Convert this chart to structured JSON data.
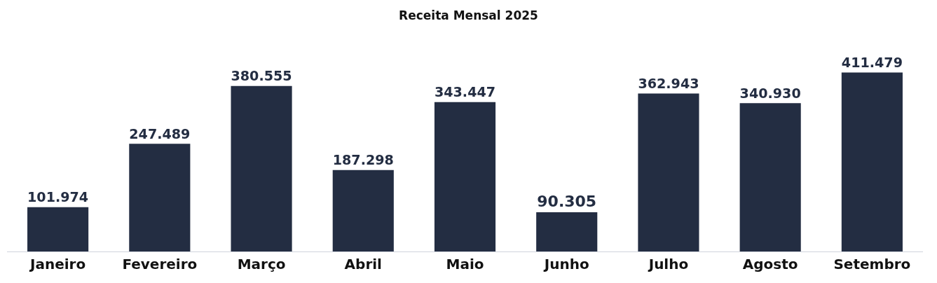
{
  "chart_data": {
    "type": "bar",
    "title": "Receita Mensal 2025",
    "categories": [
      "Janeiro",
      "Fevereiro",
      "Março",
      "Abril",
      "Maio",
      "Junho",
      "Julho",
      "Agosto",
      "Setembro"
    ],
    "values": [
      101974,
      247489,
      380555,
      187298,
      343447,
      90305,
      362943,
      340930,
      411479
    ],
    "value_labels": [
      "101.974",
      "247.489",
      "380.555",
      "187.298",
      "343.447",
      "90.305",
      "362.943",
      "340.930",
      "411.479"
    ],
    "color": "#232d42",
    "grid": false,
    "legend": false
  }
}
